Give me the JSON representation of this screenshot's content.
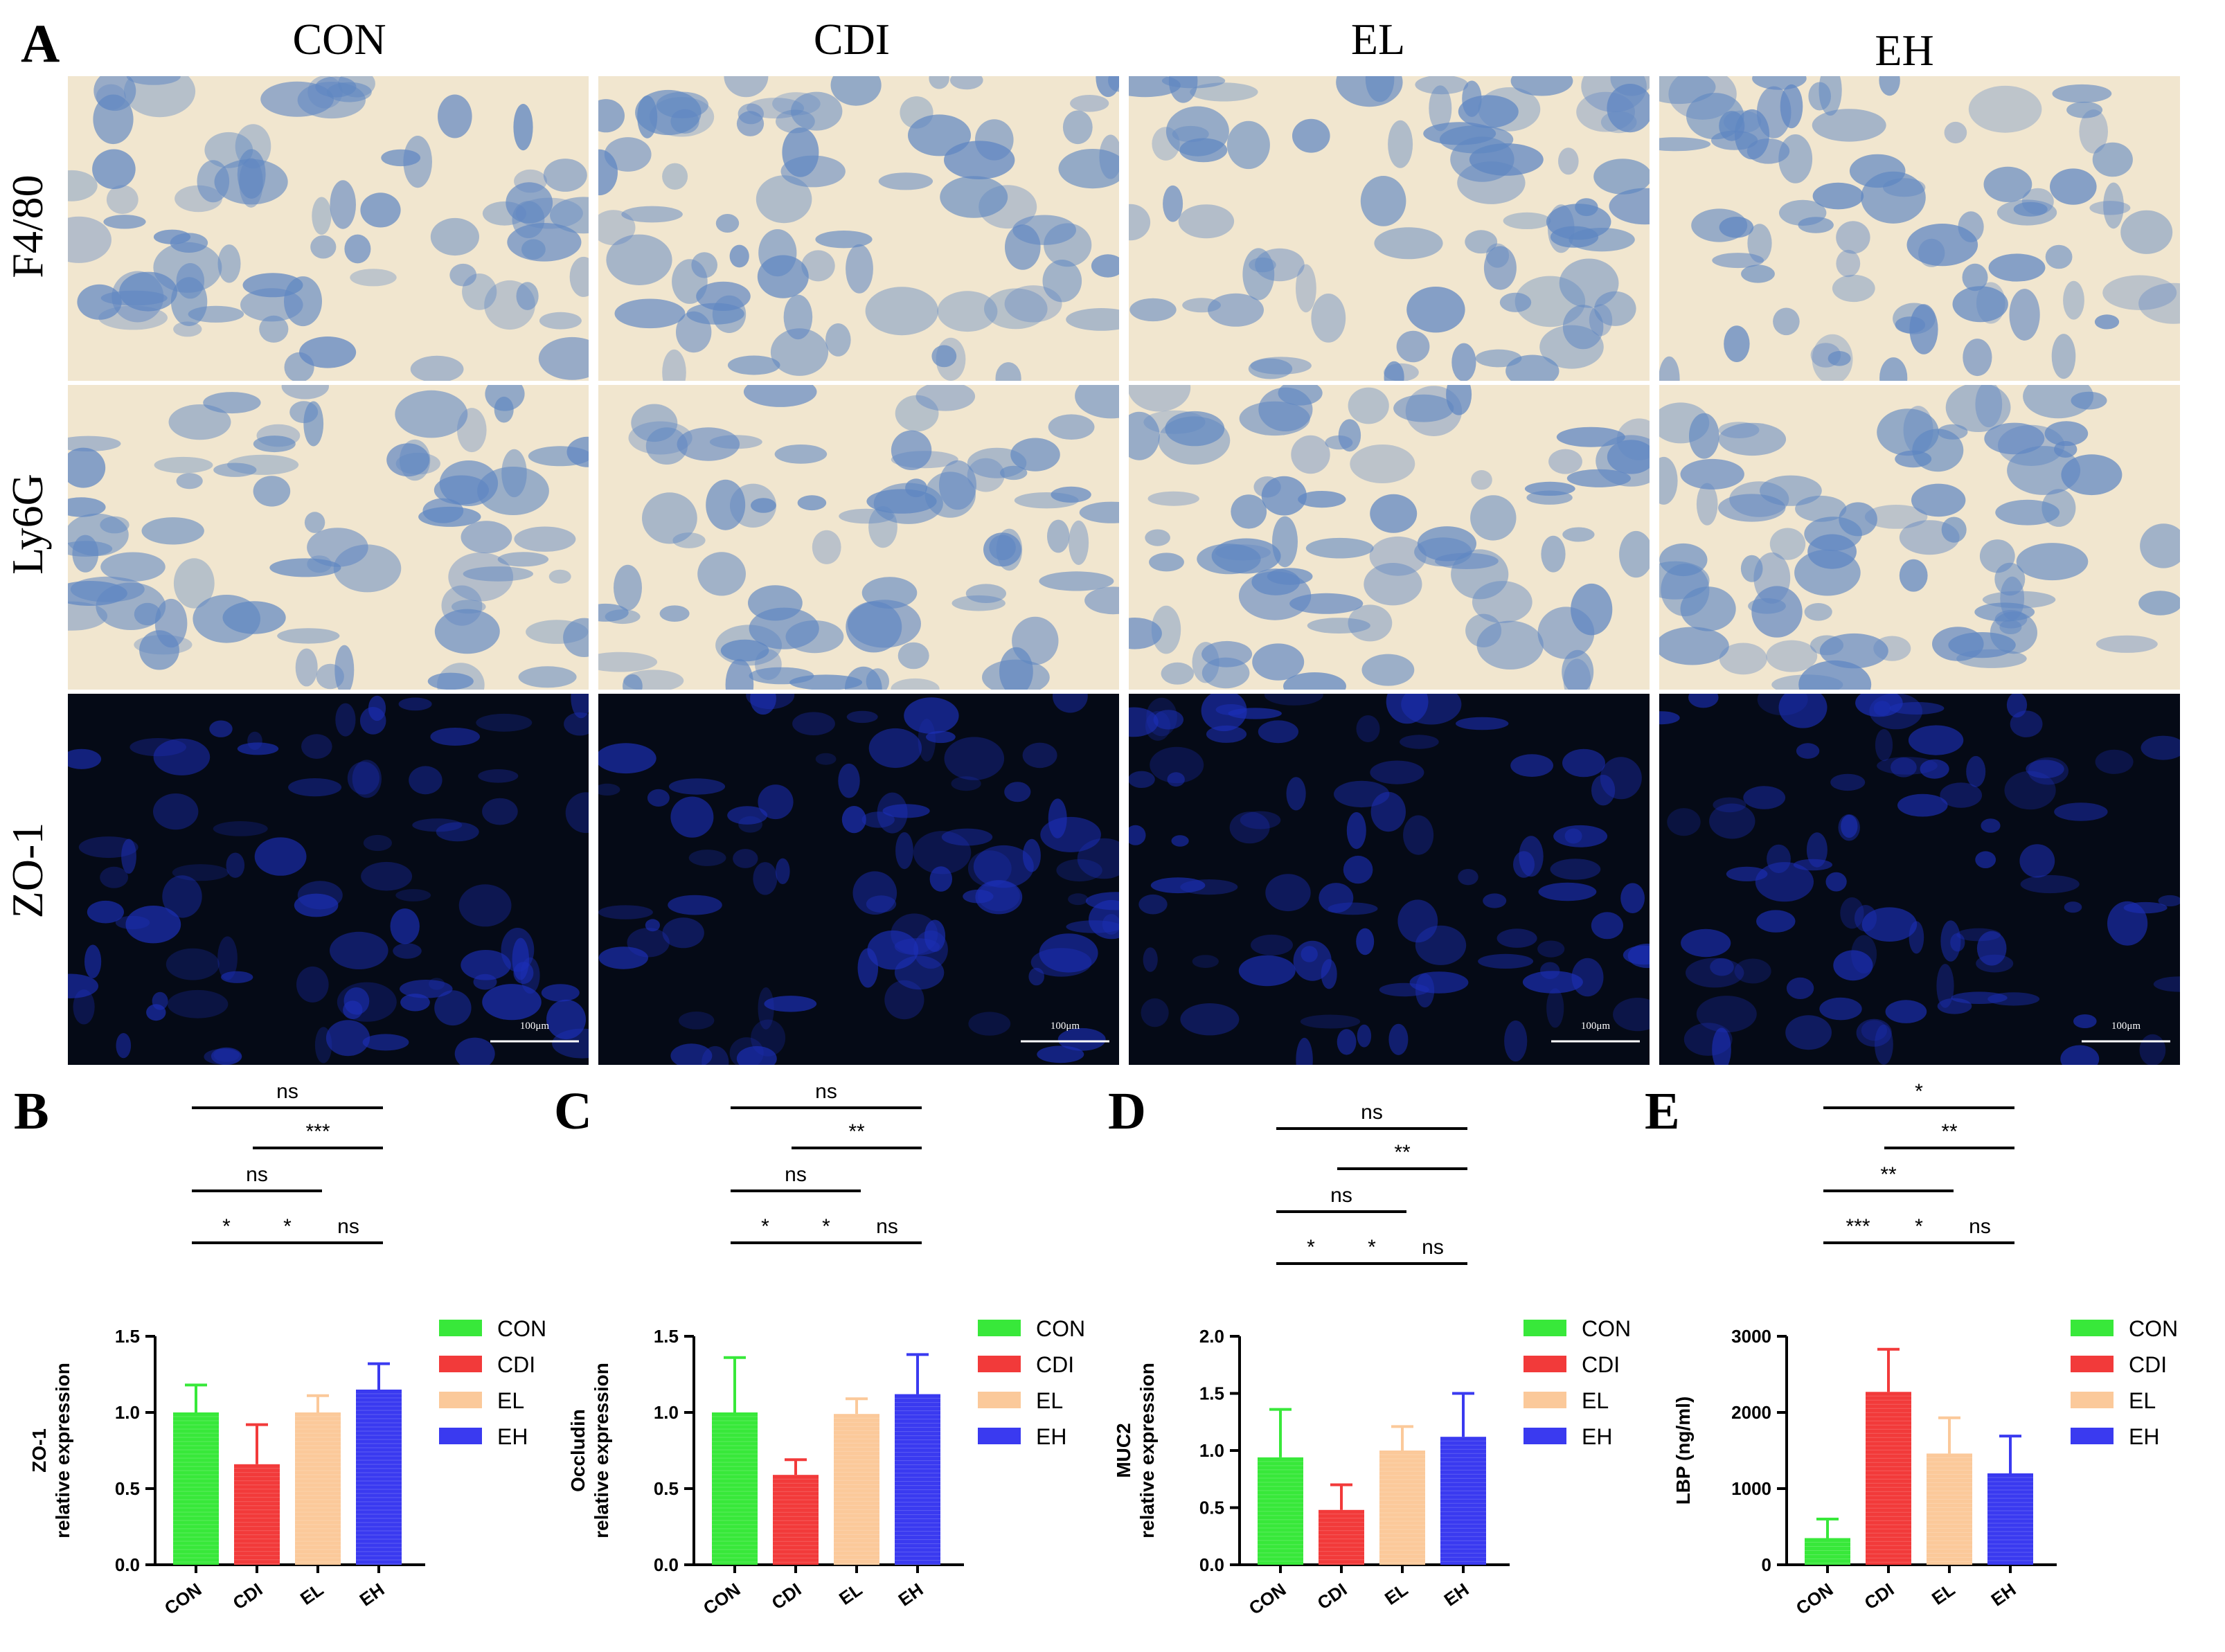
{
  "panel_a": {
    "letter": "A",
    "columns": [
      "CON",
      "CDI",
      "EL",
      "EH"
    ],
    "rows": [
      "F4/80",
      "Ly6G",
      "ZO-1"
    ],
    "scale_bar_label": "100μm"
  },
  "colors": {
    "CON": "#38e83a",
    "CDI": "#f23a3a",
    "EL": "#fbc99a",
    "EH": "#3a3af0",
    "ihc_tissue": "#5e86c2",
    "ihc_background": "#f1e6cf",
    "if_background": "#050a16",
    "if_tissue": "#1c2fb8"
  },
  "chart_data": [
    {
      "letter": "B",
      "type": "bar",
      "ylabel": [
        "ZO-1",
        "relative expression"
      ],
      "categories": [
        "CON",
        "CDI",
        "EL",
        "EH"
      ],
      "values": [
        1.0,
        0.66,
        1.0,
        1.15
      ],
      "errors": [
        0.18,
        0.26,
        0.11,
        0.17
      ],
      "ylim": [
        0,
        1.5
      ],
      "yticks": [
        "0.0",
        "0.5",
        "1.0",
        "1.5"
      ],
      "comparisons": [
        {
          "from": 0,
          "to": 3,
          "label": "ns"
        },
        {
          "from": 1,
          "to": 3,
          "label": "***"
        },
        {
          "from": 0,
          "to": 2,
          "label": "ns"
        },
        {
          "from": 0,
          "to": 1,
          "label": "*"
        },
        {
          "from": 1,
          "to": 2,
          "label": "*"
        },
        {
          "from": 2,
          "to": 3,
          "label": "ns"
        }
      ],
      "legend": [
        "CON",
        "CDI",
        "EL",
        "EH"
      ]
    },
    {
      "letter": "C",
      "type": "bar",
      "ylabel": [
        "Occludin",
        "relative expression"
      ],
      "categories": [
        "CON",
        "CDI",
        "EL",
        "EH"
      ],
      "values": [
        1.0,
        0.59,
        0.99,
        1.12
      ],
      "errors": [
        0.36,
        0.1,
        0.1,
        0.26
      ],
      "ylim": [
        0,
        1.5
      ],
      "yticks": [
        "0.0",
        "0.5",
        "1.0",
        "1.5"
      ],
      "comparisons": [
        {
          "from": 0,
          "to": 3,
          "label": "ns"
        },
        {
          "from": 1,
          "to": 3,
          "label": "**"
        },
        {
          "from": 0,
          "to": 2,
          "label": "ns"
        },
        {
          "from": 0,
          "to": 1,
          "label": "*"
        },
        {
          "from": 1,
          "to": 2,
          "label": "*"
        },
        {
          "from": 2,
          "to": 3,
          "label": "ns"
        }
      ],
      "legend": [
        "CON",
        "CDI",
        "EL",
        "EH"
      ]
    },
    {
      "letter": "D",
      "type": "bar",
      "ylabel": [
        "MUC2",
        "relative expression"
      ],
      "categories": [
        "CON",
        "CDI",
        "EL",
        "EH"
      ],
      "values": [
        0.94,
        0.48,
        1.0,
        1.12
      ],
      "errors": [
        0.42,
        0.22,
        0.21,
        0.38
      ],
      "ylim": [
        0,
        2.0
      ],
      "yticks": [
        "0.0",
        "0.5",
        "1.0",
        "1.5",
        "2.0"
      ],
      "comparisons": [
        {
          "from": 0,
          "to": 3,
          "label": "ns"
        },
        {
          "from": 1,
          "to": 3,
          "label": "**"
        },
        {
          "from": 0,
          "to": 2,
          "label": "ns"
        },
        {
          "from": 0,
          "to": 1,
          "label": "*"
        },
        {
          "from": 1,
          "to": 2,
          "label": "*"
        },
        {
          "from": 2,
          "to": 3,
          "label": "ns"
        }
      ],
      "legend": [
        "CON",
        "CDI",
        "EL",
        "EH"
      ]
    },
    {
      "letter": "E",
      "type": "bar",
      "ylabel": [
        "LBP (ng/ml)"
      ],
      "categories": [
        "CON",
        "CDI",
        "EL",
        "EH"
      ],
      "values": [
        350,
        2270,
        1460,
        1200
      ],
      "errors": [
        250,
        560,
        470,
        490
      ],
      "ylim": [
        0,
        3000
      ],
      "yticks": [
        "0",
        "1000",
        "2000",
        "3000"
      ],
      "comparisons": [
        {
          "from": 0,
          "to": 3,
          "label": "*"
        },
        {
          "from": 1,
          "to": 3,
          "label": "**"
        },
        {
          "from": 0,
          "to": 2,
          "label": "**"
        },
        {
          "from": 0,
          "to": 1,
          "label": "***"
        },
        {
          "from": 1,
          "to": 2,
          "label": "*"
        },
        {
          "from": 2,
          "to": 3,
          "label": "ns"
        }
      ],
      "legend": [
        "CON",
        "CDI",
        "EL",
        "EH"
      ]
    }
  ]
}
